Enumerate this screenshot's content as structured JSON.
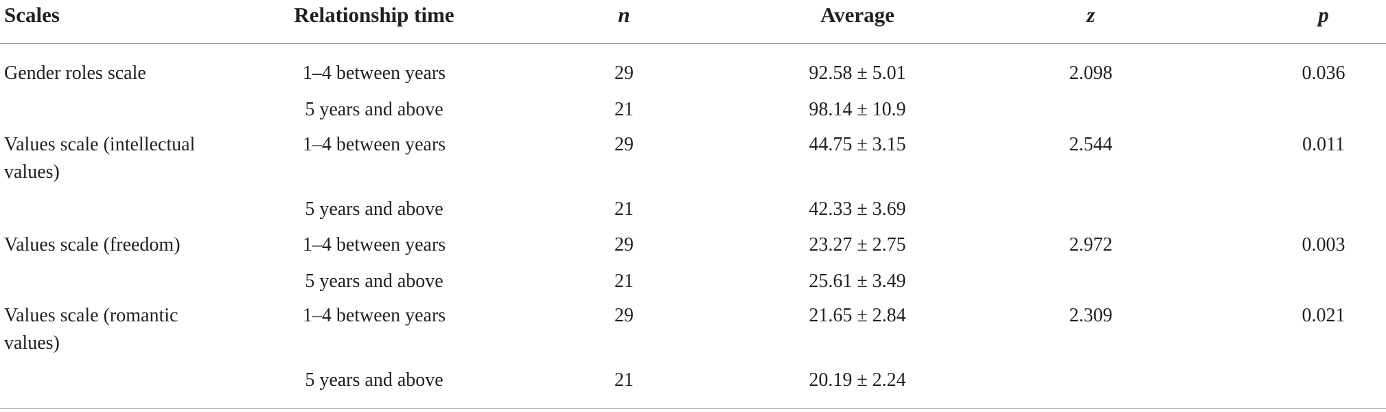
{
  "table": {
    "header": [
      "Scales",
      "Relationship time",
      "n",
      "Average",
      "z",
      "p"
    ],
    "rows": [
      [
        "Gender roles scale",
        "1–4 between years",
        29,
        "92.58 ± 5.01",
        2.098,
        0.036
      ],
      [
        null,
        "5 years and above",
        21,
        "98.14 ± 10.9",
        null,
        null
      ],
      [
        "Values scale (intellectual values)",
        "1–4 between years",
        29,
        "44.75 ± 3.15",
        2.544,
        0.011
      ],
      [
        null,
        "5 years and above",
        21,
        "42.33 ± 3.69",
        null,
        null
      ],
      [
        "Values scale (freedom)",
        "1–4 between years",
        29,
        "23.27 ± 2.75",
        2.972,
        0.003
      ],
      [
        null,
        "5 years and above",
        21,
        "25.61 ± 3.49",
        null,
        null
      ],
      [
        "Values scale (romantic values)",
        "1–4 between years",
        29,
        "21.65 ± 2.84",
        2.309,
        0.021
      ],
      [
        null,
        "5 years and above",
        21,
        "20.19 ± 2.24",
        null,
        null
      ]
    ]
  }
}
